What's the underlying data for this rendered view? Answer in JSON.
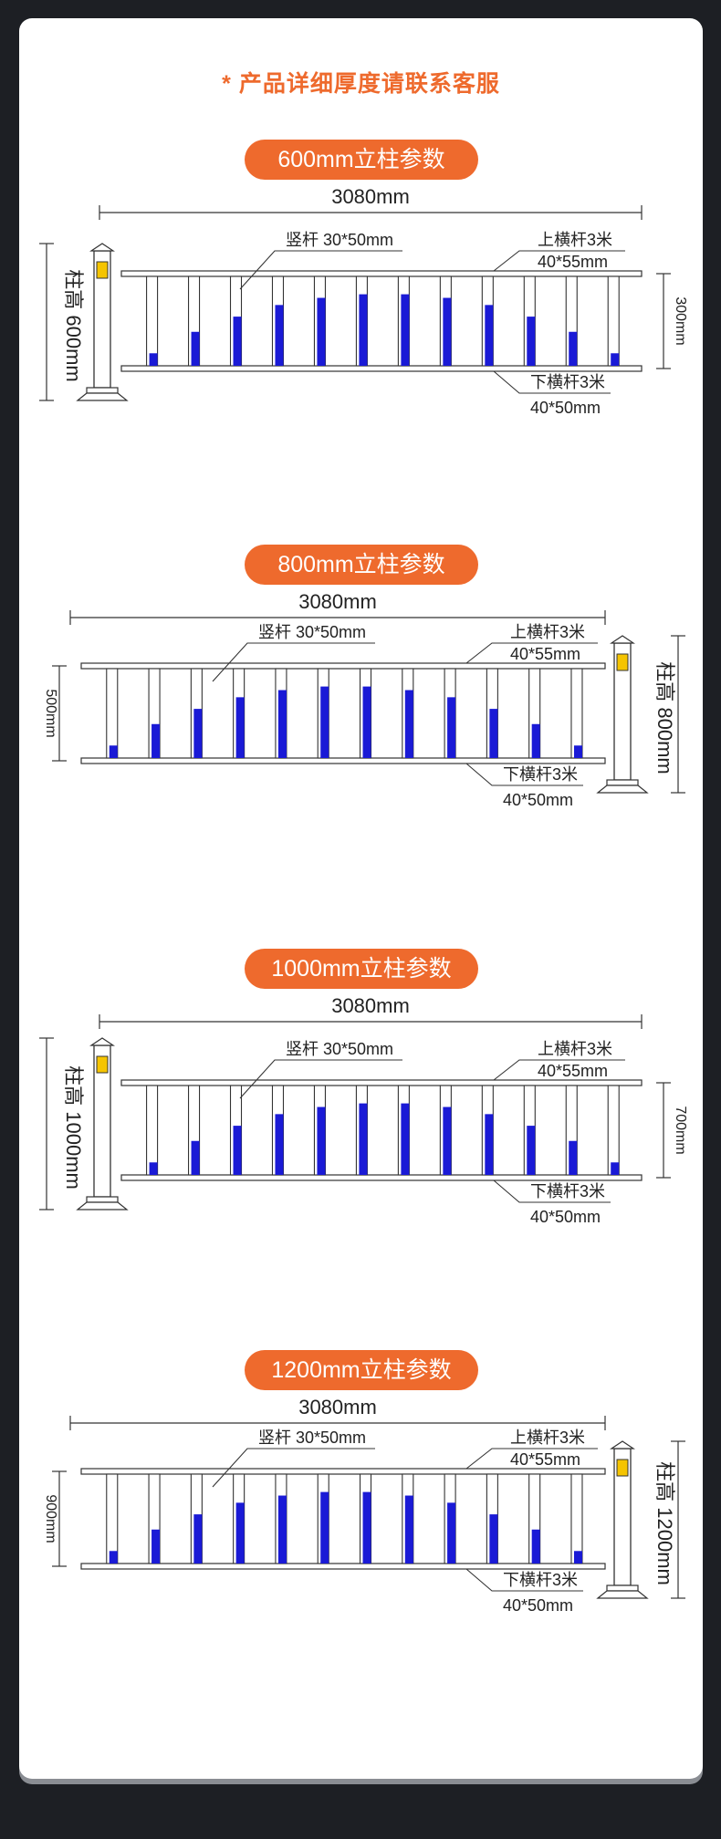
{
  "notice": "* 产品详细厚度请联系客服",
  "sections": [
    {
      "title": "600mm立柱参数",
      "length": "3080mm",
      "post_height": "柱高 600mm",
      "rail_gap": "300mm",
      "vertical_bar": "竖杆 30*50mm",
      "top_rail": "上横杆3米",
      "top_rail_size": "40*55mm",
      "bottom_rail": "下横杆3米",
      "bottom_rail_size": "40*50mm"
    },
    {
      "title": "800mm立柱参数",
      "length": "3080mm",
      "post_height": "柱高 800mm",
      "rail_gap": "500mm",
      "vertical_bar": "竖杆 30*50mm",
      "top_rail": "上横杆3米",
      "top_rail_size": "40*55mm",
      "bottom_rail": "下横杆3米",
      "bottom_rail_size": "40*50mm"
    },
    {
      "title": "1000mm立柱参数",
      "length": "3080mm",
      "post_height": "柱高 1000mm",
      "rail_gap": "700mm",
      "vertical_bar": "竖杆 30*50mm",
      "top_rail": "上横杆3米",
      "top_rail_size": "40*55mm",
      "bottom_rail": "下横杆3米",
      "bottom_rail_size": "40*50mm"
    },
    {
      "title": "1200mm立柱参数",
      "length": "3080mm",
      "post_height": "柱高 1200mm",
      "rail_gap": "900mm",
      "vertical_bar": "竖杆 30*50mm",
      "top_rail": "上横杆3米",
      "top_rail_size": "40*55mm",
      "bottom_rail": "下横杆3米",
      "bottom_rail_size": "40*50mm"
    }
  ],
  "colors": {
    "accent": "#ee6a2d",
    "bar_blue": "#1a1ad6",
    "reflector": "#f5c400"
  }
}
